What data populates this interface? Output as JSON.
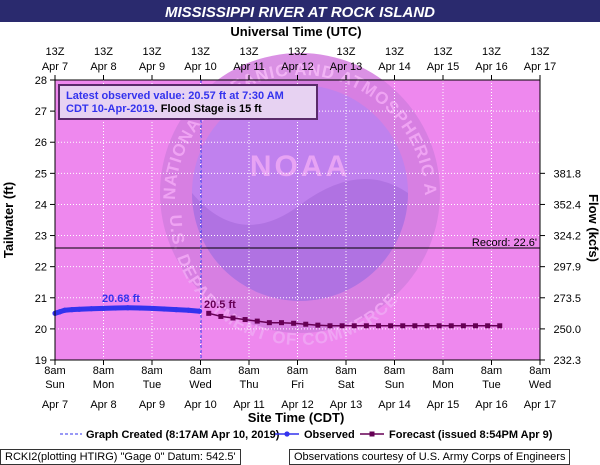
{
  "title": "MISSISSIPPI RIVER AT ROCK ISLAND",
  "colors": {
    "title_bg": "#2a2a6e",
    "plot_bg": "#ee88ee",
    "observed": "#3333ee",
    "forecast": "#660055",
    "flood_box_border": "#5a2a6a",
    "grid": "#ffffff"
  },
  "top_axis": {
    "title": "Universal Time (UTC)",
    "labels_line1": [
      "13Z",
      "13Z",
      "13Z",
      "13Z",
      "13Z",
      "13Z",
      "13Z",
      "13Z",
      "13Z",
      "13Z",
      "13Z"
    ],
    "labels_line2": [
      "Apr 7",
      "Apr 8",
      "Apr 9",
      "Apr 10",
      "Apr 11",
      "Apr 12",
      "Apr 13",
      "Apr 14",
      "Apr 15",
      "Apr 16",
      "Apr 17"
    ]
  },
  "bottom_axis": {
    "title": "Site Time (CDT)",
    "labels_line1": [
      "8am",
      "8am",
      "8am",
      "8am",
      "8am",
      "8am",
      "8am",
      "8am",
      "8am",
      "8am",
      "8am"
    ],
    "labels_line2": [
      "Sun",
      "Mon",
      "Tue",
      "Wed",
      "Thu",
      "Fri",
      "Sat",
      "Sun",
      "Mon",
      "Tue",
      "Wed"
    ],
    "labels_line3": [
      "Apr 7",
      "Apr 8",
      "Apr 9",
      "Apr 10",
      "Apr 11",
      "Apr 12",
      "Apr 13",
      "Apr 14",
      "Apr 15",
      "Apr 16",
      "Apr 17"
    ]
  },
  "left_axis": {
    "title": "Tailwater (ft)",
    "ticks": [
      "19",
      "20",
      "21",
      "22",
      "23",
      "24",
      "25",
      "26",
      "27",
      "28"
    ]
  },
  "right_axis": {
    "title": "Flow (kcfs)",
    "ticks": [
      "232.3",
      "250.0",
      "273.5",
      "297.9",
      "324.2",
      "352.4",
      "381.8"
    ]
  },
  "latest_box": {
    "line1": "Latest observed value: 20.57 ft at 7:30 AM",
    "line2_blue": "CDT 10-Apr-2019",
    "line2_sep": ".",
    "line2_black": " Flood Stage is 15 ft"
  },
  "record_label": "Record: 22.6'",
  "observed_label": "20.68 ft",
  "forecast_label": "20.5 ft",
  "watermark": {
    "center": "NOAA",
    "arc_top": "NATIONAL OCEANIC AND ATMOSPHERIC ADMINISTRATION",
    "arc_bottom": "U.S. DEPARTMENT OF COMMERCE"
  },
  "legend": {
    "created": "Graph Created (8:17AM Apr 10, 2019)",
    "observed": "Observed",
    "forecast": "Forecast (issued 8:54PM Apr 9)"
  },
  "footer": {
    "left": "RCKI2(plotting HTIRG) \"Gage 0\" Datum:  542.5'",
    "right": "Observations courtesy of U.S. Army Corps of Engineers"
  },
  "chart_data": {
    "type": "line",
    "ylim": [
      19,
      28
    ],
    "x_unit": "days since Apr 7 8am CDT",
    "xlim": [
      0,
      10
    ],
    "record_stage": 22.6,
    "flood_stage": 15,
    "graph_created_x": 3.01,
    "series": [
      {
        "name": "Observed",
        "x": [
          0.0,
          0.1,
          0.2,
          0.35,
          0.5,
          0.75,
          1.0,
          1.25,
          1.5,
          1.75,
          2.0,
          2.25,
          2.5,
          2.75,
          2.98
        ],
        "values": [
          20.5,
          20.55,
          20.6,
          20.62,
          20.63,
          20.65,
          20.66,
          20.67,
          20.68,
          20.67,
          20.66,
          20.64,
          20.62,
          20.6,
          20.57
        ]
      },
      {
        "name": "Forecast (issued 8:54PM Apr 9)",
        "x": [
          3.17,
          3.42,
          3.67,
          3.92,
          4.17,
          4.42,
          4.67,
          4.92,
          5.17,
          5.42,
          5.67,
          5.92,
          6.17,
          6.42,
          6.67,
          6.92,
          7.17,
          7.42,
          7.67,
          7.92,
          8.17,
          8.42,
          8.67,
          8.92,
          9.17
        ],
        "values": [
          20.5,
          20.4,
          20.35,
          20.3,
          20.25,
          20.2,
          20.2,
          20.18,
          20.15,
          20.12,
          20.1,
          20.1,
          20.1,
          20.1,
          20.1,
          20.1,
          20.1,
          20.1,
          20.1,
          20.1,
          20.1,
          20.1,
          20.1,
          20.1,
          20.1
        ]
      }
    ]
  }
}
